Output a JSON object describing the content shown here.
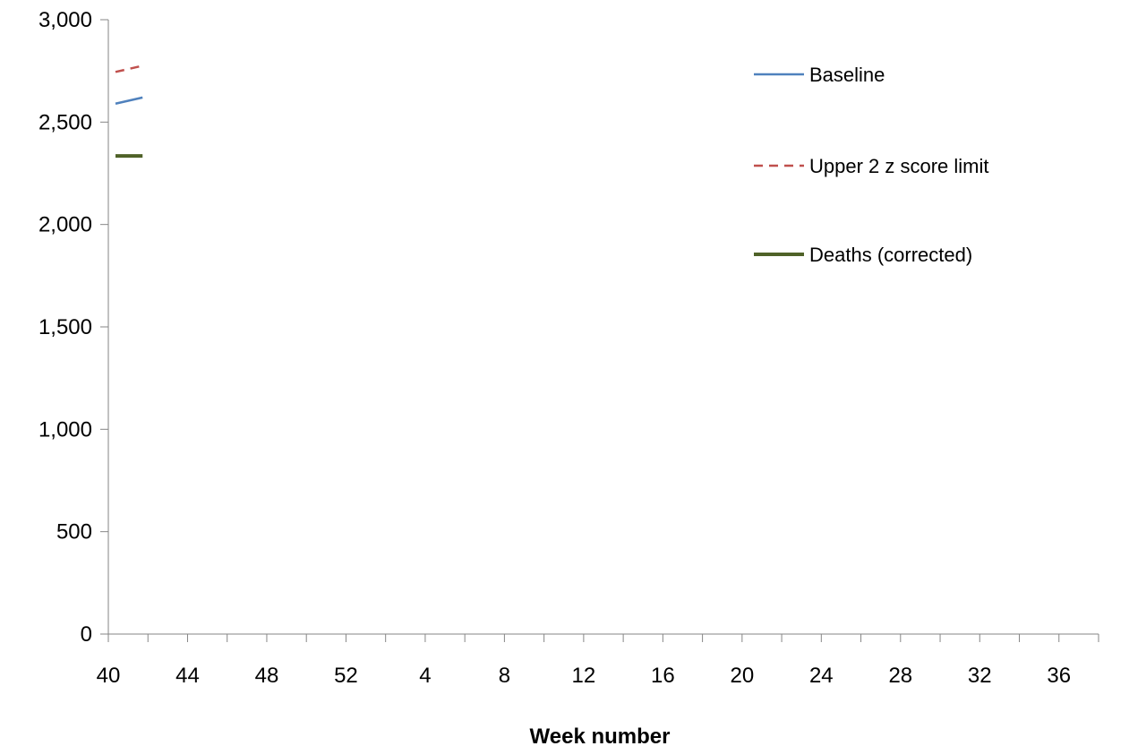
{
  "chart_data": {
    "type": "line",
    "title": "",
    "xlabel": "Week number",
    "ylabel": "",
    "x_tick_labels": [
      "40",
      "44",
      "48",
      "52",
      "4",
      "8",
      "12",
      "16",
      "20",
      "24",
      "28",
      "32",
      "36"
    ],
    "y_tick_labels": [
      "0",
      "500",
      "1,000",
      "1,500",
      "2,000",
      "2,500",
      "3,000"
    ],
    "ylim": [
      0,
      3000
    ],
    "grid": false,
    "legend_position": "top-right",
    "x": [
      "40",
      "41"
    ],
    "series": [
      {
        "name": "Baseline",
        "values": [
          2590,
          2620
        ],
        "color": "#4f81bd",
        "dash": "solid"
      },
      {
        "name": "Upper 2 z score limit",
        "values": [
          2745,
          2775
        ],
        "color": "#c0504d",
        "dash": "dashed"
      },
      {
        "name": "Deaths (corrected)",
        "values": [
          2335,
          2335
        ],
        "color": "#4f6228",
        "dash": "solid"
      }
    ]
  }
}
